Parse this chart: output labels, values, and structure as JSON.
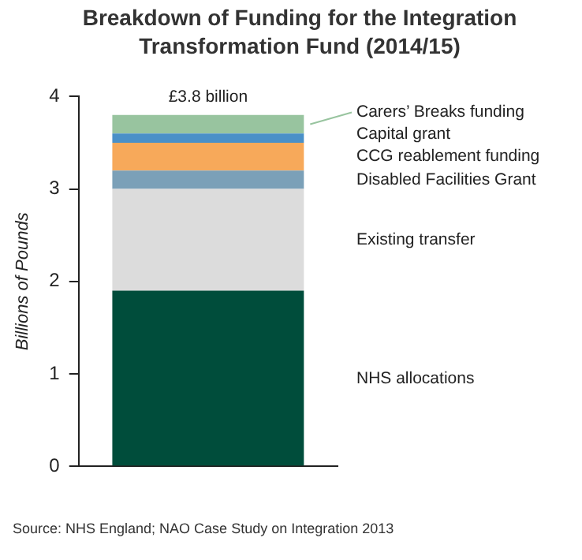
{
  "chart_data": {
    "type": "bar",
    "title": "Breakdown of Funding for the Integration Transformation Fund (2014/15)",
    "ylabel": "Billions of Pounds",
    "categories": [
      null
    ],
    "stacked": true,
    "legend": false,
    "grid": false,
    "ylim": [
      0,
      4
    ],
    "yticks": [
      0,
      1,
      2,
      3,
      4
    ],
    "totals": [
      "£3.8 billion"
    ],
    "series": [
      {
        "name": "NHS allocations",
        "color": "#004d3b",
        "values": [
          1.9
        ]
      },
      {
        "name": "Existing transfer",
        "color": "#dcdcdc",
        "values": [
          1.1
        ]
      },
      {
        "name": "Disabled Facilities Grant",
        "color": "#7ba0b8",
        "values": [
          0.2
        ]
      },
      {
        "name": "CCG reablement funding",
        "color": "#f7a95a",
        "values": [
          0.3
        ]
      },
      {
        "name": "Capital grant",
        "color": "#4a90c8",
        "values": [
          0.1
        ]
      },
      {
        "name": "Carers’ Breaks funding",
        "color": "#98c49f",
        "values": [
          0.2
        ]
      }
    ],
    "annotations": [
      "Source:  NHS England; NAO Case Study on Integration 2013"
    ]
  }
}
